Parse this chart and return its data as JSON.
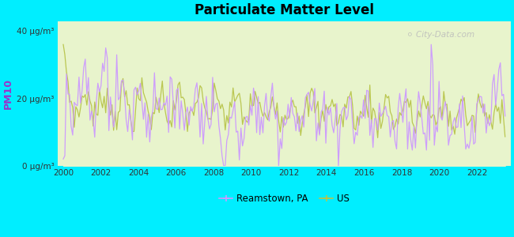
{
  "title": "Particulate Matter Level",
  "ylabel": "PM10",
  "bg_color": "#00EEFF",
  "plot_bg_color": "#e8f4cc",
  "line_color_pa": "#cc99ff",
  "line_color_us": "#b8c44a",
  "legend_pa": "Reamstown, PA",
  "legend_us": "US",
  "xlim": [
    1999.7,
    2023.8
  ],
  "ylim": [
    0,
    43
  ],
  "yticks": [
    0,
    20,
    40
  ],
  "ytick_labels": [
    "0 μg/m³",
    "20 μg/m³",
    "40 μg/m³"
  ],
  "xticks": [
    2000,
    2002,
    2004,
    2006,
    2008,
    2010,
    2012,
    2014,
    2016,
    2018,
    2020,
    2022
  ],
  "watermark": "⚪ City-Data.com"
}
